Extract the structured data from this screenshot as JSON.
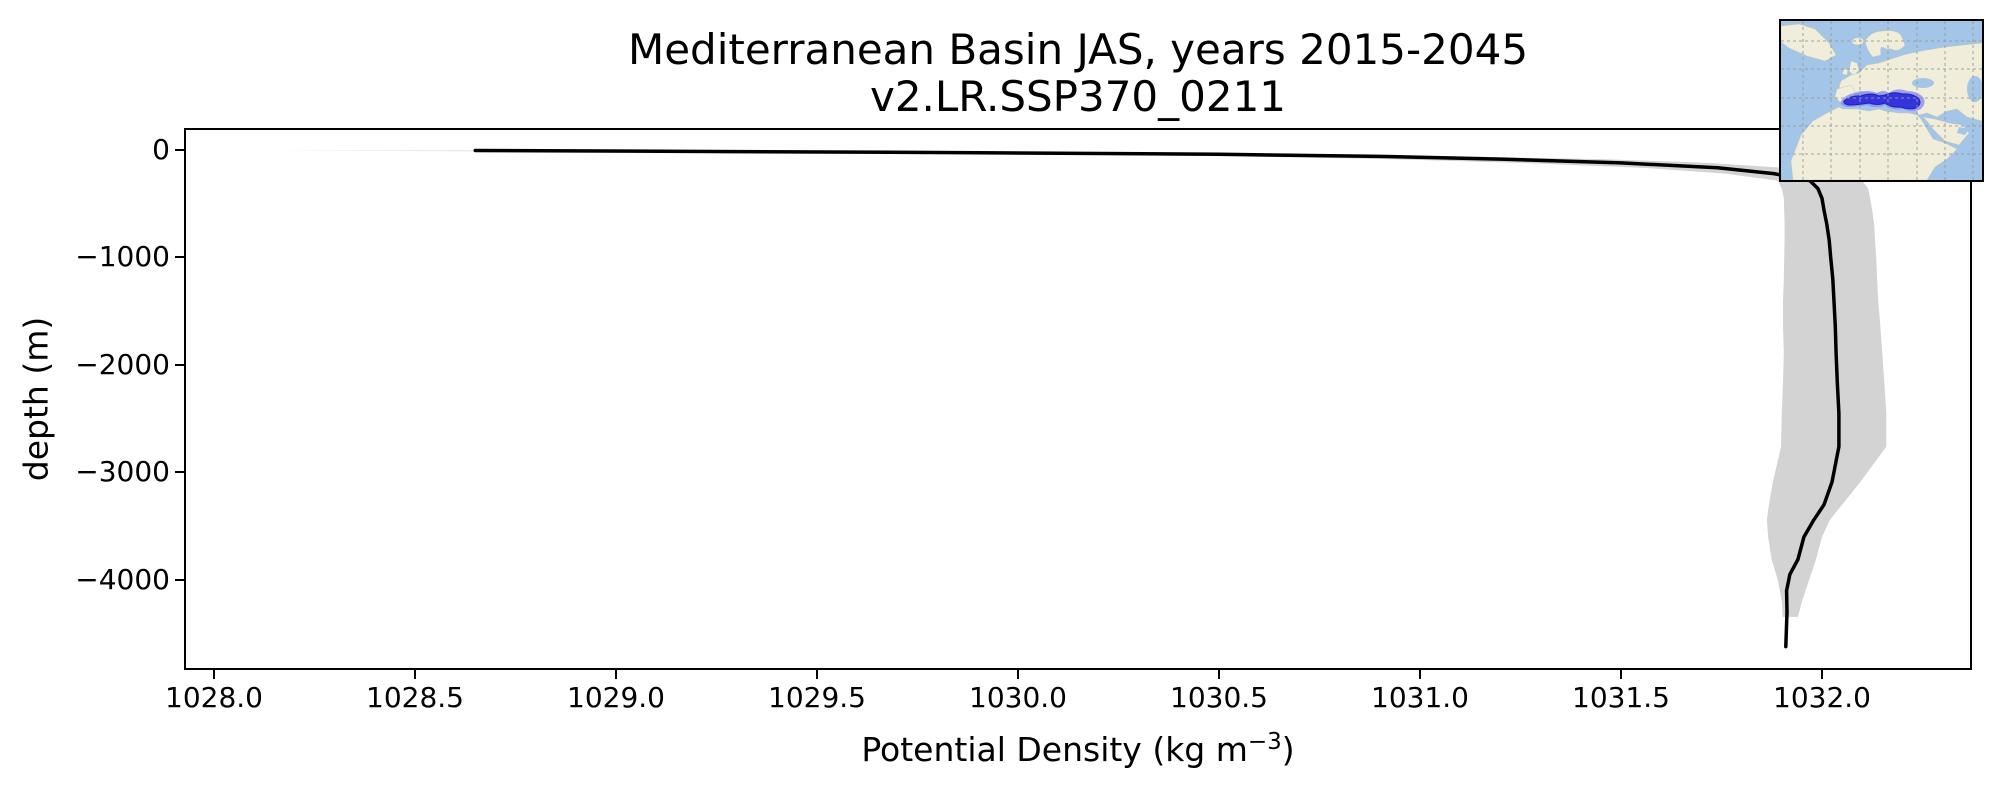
{
  "figure": {
    "background": "#ffffff"
  },
  "title": {
    "line1": "Mediterranean Basin JAS, years 2015-2045",
    "line2": "v2.LR.SSP370_0211"
  },
  "chart_data": {
    "type": "line",
    "title_line1": "Mediterranean Basin JAS, years 2015-2045",
    "title_line2": "v2.LR.SSP370_0211",
    "xlabel_main": "Potential Density (kg m",
    "xlabel_sup": "−3",
    "xlabel_end": ")",
    "ylabel": "depth (m)",
    "xlim": [
      1027.9303,
      1032.3682
    ],
    "ylim": [
      -4819,
      186
    ],
    "grid": false,
    "legend": null,
    "xtick_values": [
      1028.0,
      1028.5,
      1029.0,
      1029.5,
      1030.0,
      1030.5,
      1031.0,
      1031.5,
      1032.0
    ],
    "xtick_labels": [
      "1028.0",
      "1028.5",
      "1029.0",
      "1029.5",
      "1030.0",
      "1030.5",
      "1031.0",
      "1031.5",
      "1032.0"
    ],
    "ytick_values": [
      0,
      -1000,
      -2000,
      -3000,
      -4000
    ],
    "ytick_labels": [
      "0",
      "−1000",
      "−2000",
      "−3000",
      "−4000"
    ],
    "series": [
      {
        "name": "mean-profile",
        "style": "line",
        "color": "#000000",
        "linewidth": 3.5,
        "depth": [
          -5,
          -15,
          -25,
          -40,
          -60,
          -85,
          -120,
          -165,
          -220,
          -285,
          -360,
          -450,
          -560,
          -690,
          -840,
          -1010,
          -1200,
          -1410,
          -1640,
          -1890,
          -2160,
          -2450,
          -2760,
          -3090,
          -3300,
          -3440,
          -3600,
          -3810,
          -3950,
          -4100,
          -4300,
          -4620
        ],
        "values": [
          1028.65,
          1029.3,
          1029.9,
          1030.5,
          1030.9,
          1031.2,
          1031.5,
          1031.74,
          1031.88,
          1031.97,
          1031.99,
          1032.0,
          1032.005,
          1032.012,
          1032.018,
          1032.022,
          1032.027,
          1032.03,
          1032.033,
          1032.035,
          1032.038,
          1032.042,
          1032.042,
          1032.025,
          1032.005,
          1031.98,
          1031.955,
          1031.94,
          1031.92,
          1031.912,
          1031.913,
          1031.91
        ]
      },
      {
        "name": "spread-band",
        "style": "band",
        "color": "#d3d3d3",
        "depth": [
          -5,
          -15,
          -25,
          -40,
          -60,
          -85,
          -120,
          -165,
          -220,
          -285,
          -360,
          -450,
          -560,
          -690,
          -840,
          -1010,
          -1200,
          -1410,
          -1640,
          -1890,
          -2160,
          -2450,
          -2760,
          -3090,
          -3300,
          -3440,
          -3600,
          -3810,
          -4000,
          -4200,
          -4344
        ],
        "min": [
          1028.145,
          1028.85,
          1029.45,
          1030.05,
          1030.55,
          1030.92,
          1031.25,
          1031.55,
          1031.76,
          1031.89,
          1031.9,
          1031.905,
          1031.906,
          1031.907,
          1031.907,
          1031.906,
          1031.905,
          1031.903,
          1031.903,
          1031.905,
          1031.903,
          1031.9,
          1031.898,
          1031.878,
          1031.868,
          1031.863,
          1031.866,
          1031.875,
          1031.89,
          1031.9,
          1031.902
        ],
        "max": [
          1029.0,
          1029.6,
          1030.15,
          1030.7,
          1031.1,
          1031.45,
          1031.72,
          1031.9,
          1032.0,
          1032.1,
          1032.115,
          1032.12,
          1032.125,
          1032.13,
          1032.132,
          1032.135,
          1032.137,
          1032.14,
          1032.145,
          1032.15,
          1032.155,
          1032.16,
          1032.16,
          1032.095,
          1032.05,
          1032.02,
          1032.0,
          1031.985,
          1031.968,
          1031.95,
          1031.94
        ]
      }
    ],
    "inset_map": {
      "description": "Mediterranean Basin location map",
      "ocean_color": "#a2c5e8",
      "land_color": "#f0eedb",
      "highlight_color": "#3434dd",
      "highlight_halo_color": "#8585ee",
      "gridline_color": "#999999",
      "border_color": "#000000"
    }
  },
  "colors": {
    "spine": "#000000",
    "tick": "#000000",
    "text": "#000000",
    "mean_line": "#000000",
    "band_fill": "#d3d3d3"
  }
}
